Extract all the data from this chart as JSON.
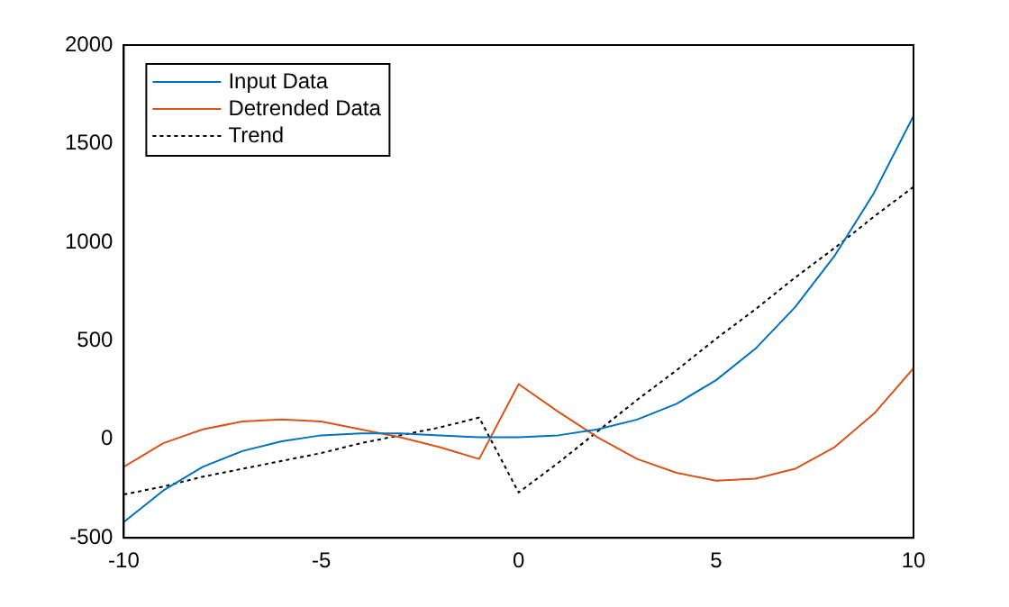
{
  "chart_data": {
    "type": "line",
    "xlim": [
      -10,
      10
    ],
    "xticks": [
      -10,
      -5,
      0,
      5,
      10
    ],
    "ylim": [
      -500,
      2000
    ],
    "yticks": [
      -500,
      0,
      500,
      1000,
      1500,
      2000
    ],
    "grid": false,
    "legend": "top left",
    "marker": "none",
    "series": [
      {
        "name": "Input Data",
        "color": "#0072bd",
        "line_style": "solid",
        "x": [
          -10,
          -9,
          -8,
          -7,
          -6,
          -5,
          -4,
          -3,
          -2,
          -1,
          0,
          1,
          2,
          3,
          4,
          5,
          6,
          7,
          8,
          9,
          10
        ],
        "values": [
          -420,
          -260,
          -140,
          -60,
          -10,
          20,
          30,
          30,
          20,
          10,
          10,
          20,
          50,
          100,
          180,
          300,
          460,
          670,
          930,
          1250,
          1640
        ]
      },
      {
        "name": "Detrended Data",
        "color": "#d95319",
        "line_style": "solid",
        "x": [
          -10,
          -9,
          -8,
          -7,
          -6,
          -5,
          -4,
          -3,
          -2,
          -1,
          0,
          1,
          2,
          3,
          4,
          5,
          6,
          7,
          8,
          9,
          10
        ],
        "values": [
          -140,
          -20,
          50,
          90,
          100,
          90,
          50,
          10,
          -40,
          -100,
          280,
          140,
          10,
          -100,
          -170,
          -210,
          -200,
          -150,
          -40,
          130,
          360
        ]
      },
      {
        "name": "Trend",
        "color": "#000000",
        "line_style": "dotted",
        "x": [
          -10,
          -9,
          -8,
          -7,
          -6,
          -5,
          -4,
          -3,
          -2,
          -1,
          0,
          1,
          2,
          3,
          4,
          5,
          6,
          7,
          8,
          9,
          10
        ],
        "values": [
          -280,
          -240,
          -190,
          -150,
          -110,
          -70,
          -20,
          20,
          60,
          110,
          -270,
          -120,
          40,
          200,
          350,
          510,
          660,
          820,
          970,
          1130,
          1280
        ]
      }
    ]
  }
}
